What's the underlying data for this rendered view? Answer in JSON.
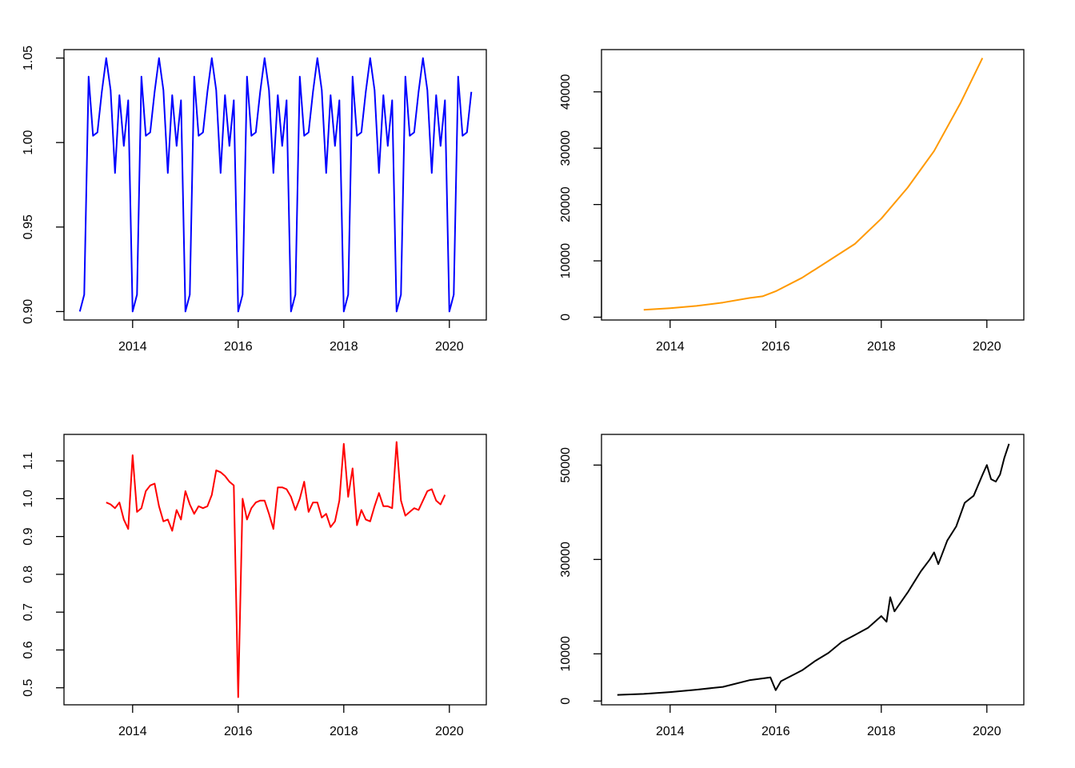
{
  "chart_data": [
    {
      "type": "line",
      "title": "",
      "xlabel": "",
      "ylabel": "",
      "color": "#0000FF",
      "xlim": [
        2012.7,
        2020.7
      ],
      "ylim": [
        0.895,
        1.055
      ],
      "xticks": [
        2014,
        2016,
        2018,
        2020
      ],
      "xtick_labels": [
        "2014",
        "2016",
        "2018",
        "2020"
      ],
      "yticks": [
        0.9,
        0.95,
        1.0,
        1.05
      ],
      "ytick_labels": [
        "0.90",
        "0.95",
        "1.00",
        "1.05"
      ],
      "grid": false,
      "seasonal_pattern": [
        0.9,
        0.91,
        1.039,
        1.004,
        1.006,
        1.03,
        1.05,
        1.031,
        0.982,
        1.028,
        0.998,
        1.025
      ],
      "x_start": 2013.0,
      "x_step": 0.08333,
      "n_points": 90
    },
    {
      "type": "line",
      "title": "",
      "xlabel": "",
      "ylabel": "",
      "color": "#FF9900",
      "xlim": [
        2012.7,
        2020.7
      ],
      "ylim": [
        -500,
        47500
      ],
      "xticks": [
        2014,
        2016,
        2018,
        2020
      ],
      "xtick_labels": [
        "2014",
        "2016",
        "2018",
        "2020"
      ],
      "yticks": [
        0,
        10000,
        20000,
        30000,
        40000
      ],
      "ytick_labels": [
        "0",
        "10000",
        "20000",
        "30000",
        "40000"
      ],
      "grid": false,
      "x": [
        2013.5,
        2014.0,
        2014.5,
        2015.0,
        2015.5,
        2015.75,
        2016.0,
        2016.5,
        2017.0,
        2017.5,
        2018.0,
        2018.5,
        2019.0,
        2019.5,
        2019.917
      ],
      "y": [
        1300,
        1600,
        2000,
        2600,
        3400,
        3700,
        4600,
        7000,
        10000,
        13000,
        17500,
        23000,
        29500,
        38000,
        46000
      ]
    },
    {
      "type": "line",
      "title": "",
      "xlabel": "",
      "ylabel": "",
      "color": "#FF0000",
      "xlim": [
        2012.7,
        2020.7
      ],
      "ylim": [
        0.455,
        1.17
      ],
      "xticks": [
        2014,
        2016,
        2018,
        2020
      ],
      "xtick_labels": [
        "2014",
        "2016",
        "2018",
        "2020"
      ],
      "yticks": [
        0.5,
        0.6,
        0.7,
        0.8,
        0.9,
        1.0,
        1.1
      ],
      "ytick_labels": [
        "0.5",
        "0.6",
        "0.7",
        "0.8",
        "0.9",
        "1.0",
        "1.1"
      ],
      "grid": false,
      "x_start": 2013.5,
      "x_step": 0.08333,
      "y": [
        0.99,
        0.985,
        0.975,
        0.99,
        0.945,
        0.92,
        1.115,
        0.965,
        0.975,
        1.02,
        1.035,
        1.04,
        0.98,
        0.94,
        0.945,
        0.915,
        0.97,
        0.945,
        1.02,
        0.985,
        0.96,
        0.98,
        0.975,
        0.98,
        1.01,
        1.075,
        1.07,
        1.06,
        1.045,
        1.035,
        0.475,
        1.0,
        0.945,
        0.975,
        0.99,
        0.995,
        0.995,
        0.96,
        0.92,
        1.03,
        1.03,
        1.025,
        1.005,
        0.97,
        1.0,
        1.045,
        0.965,
        0.99,
        0.99,
        0.95,
        0.96,
        0.925,
        0.94,
        0.995,
        1.145,
        1.005,
        1.08,
        0.93,
        0.97,
        0.945,
        0.94,
        0.98,
        1.015,
        0.98,
        0.98,
        0.975,
        1.15,
        0.995,
        0.955,
        0.965,
        0.975,
        0.97,
        0.995,
        1.02,
        1.025,
        0.995,
        0.985,
        1.01
      ]
    },
    {
      "type": "line",
      "title": "",
      "xlabel": "",
      "ylabel": "",
      "color": "#000000",
      "xlim": [
        2012.7,
        2020.7
      ],
      "ylim": [
        -800,
        56500
      ],
      "xticks": [
        2014,
        2016,
        2018,
        2020
      ],
      "xtick_labels": [
        "2014",
        "2016",
        "2018",
        "2020"
      ],
      "yticks": [
        0,
        10000,
        30000,
        50000
      ],
      "ytick_labels": [
        "0",
        "10000",
        "30000",
        "50000"
      ],
      "grid": false,
      "x": [
        2013.0,
        2013.5,
        2014.0,
        2014.5,
        2015.0,
        2015.5,
        2015.9,
        2016.0,
        2016.1,
        2016.5,
        2016.75,
        2017.0,
        2017.25,
        2017.5,
        2017.75,
        2018.0,
        2018.1,
        2018.17,
        2018.25,
        2018.5,
        2018.75,
        2018.92,
        2019.0,
        2019.08,
        2019.25,
        2019.42,
        2019.58,
        2019.75,
        2019.92,
        2020.0,
        2020.08,
        2020.17,
        2020.25,
        2020.33,
        2020.42
      ],
      "y": [
        1300,
        1500,
        1900,
        2400,
        3000,
        4400,
        5000,
        2300,
        4200,
        6500,
        8500,
        10200,
        12500,
        14000,
        15500,
        18000,
        16800,
        22000,
        19000,
        23000,
        27500,
        30000,
        31500,
        29000,
        34000,
        37000,
        42000,
        43500,
        48000,
        50000,
        47000,
        46500,
        48000,
        51500,
        54500
      ]
    }
  ]
}
